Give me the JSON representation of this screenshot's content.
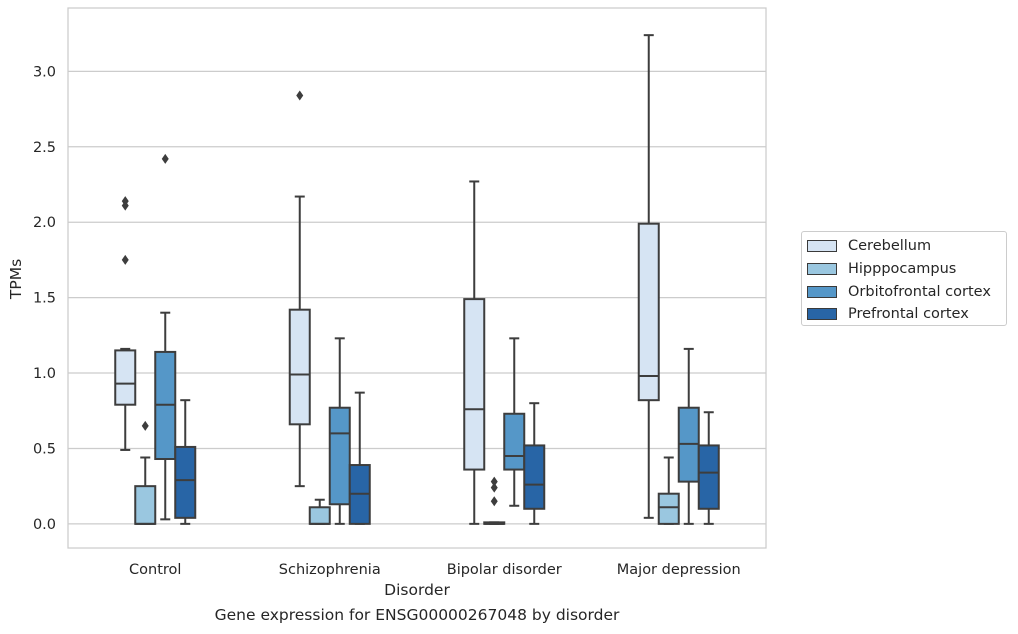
{
  "caption": "Gene expression for ENSG00000267048 by disorder",
  "chart_data": {
    "type": "box",
    "xlabel": "Disorder",
    "ylabel": "TPMs",
    "ylim": [
      -0.16,
      3.42
    ],
    "yticks": [
      0.0,
      0.5,
      1.0,
      1.5,
      2.0,
      2.5,
      3.0
    ],
    "ytick_labels": [
      "0.0",
      "0.5",
      "1.0",
      "1.5",
      "2.0",
      "2.5",
      "3.0"
    ],
    "grid": "horizontal",
    "legend_position": "right",
    "categories": [
      "Control",
      "Schizophrenia",
      "Bipolar disorder",
      "Major depression"
    ],
    "series": [
      {
        "name": "Cerebellum",
        "color": "#d6e4f3",
        "boxes": [
          {
            "whisker_low": 0.49,
            "q1": 0.79,
            "median": 0.93,
            "q3": 1.15,
            "whisker_high": 1.16,
            "outliers": [
              1.75,
              2.11,
              2.14
            ]
          },
          {
            "whisker_low": 0.25,
            "q1": 0.66,
            "median": 0.99,
            "q3": 1.42,
            "whisker_high": 2.17,
            "outliers": [
              2.84
            ]
          },
          {
            "whisker_low": 0.0,
            "q1": 0.36,
            "median": 0.76,
            "q3": 1.49,
            "whisker_high": 2.27,
            "outliers": []
          },
          {
            "whisker_low": 0.04,
            "q1": 0.82,
            "median": 0.98,
            "q3": 1.99,
            "whisker_high": 3.24,
            "outliers": []
          }
        ]
      },
      {
        "name": "Hipppocampus",
        "color": "#9ac7e0",
        "boxes": [
          {
            "whisker_low": 0.0,
            "q1": 0.0,
            "median": 0.0,
            "q3": 0.25,
            "whisker_high": 0.44,
            "outliers": [
              0.65
            ]
          },
          {
            "whisker_low": 0.0,
            "q1": 0.0,
            "median": 0.0,
            "q3": 0.11,
            "whisker_high": 0.16,
            "outliers": []
          },
          {
            "whisker_low": 0.0,
            "q1": 0.0,
            "median": 0.0,
            "q3": 0.01,
            "whisker_high": 0.01,
            "outliers": [
              0.15,
              0.24,
              0.28
            ]
          },
          {
            "whisker_low": 0.0,
            "q1": 0.0,
            "median": 0.11,
            "q3": 0.2,
            "whisker_high": 0.44,
            "outliers": []
          }
        ]
      },
      {
        "name": "Orbitofrontal cortex",
        "color": "#5597c8",
        "boxes": [
          {
            "whisker_low": 0.03,
            "q1": 0.43,
            "median": 0.79,
            "q3": 1.14,
            "whisker_high": 1.4,
            "outliers": [
              2.42
            ]
          },
          {
            "whisker_low": 0.0,
            "q1": 0.13,
            "median": 0.6,
            "q3": 0.77,
            "whisker_high": 1.23,
            "outliers": []
          },
          {
            "whisker_low": 0.12,
            "q1": 0.36,
            "median": 0.45,
            "q3": 0.73,
            "whisker_high": 1.23,
            "outliers": []
          },
          {
            "whisker_low": 0.0,
            "q1": 0.28,
            "median": 0.53,
            "q3": 0.77,
            "whisker_high": 1.16,
            "outliers": []
          }
        ]
      },
      {
        "name": "Prefrontal cortex",
        "color": "#2865a6",
        "boxes": [
          {
            "whisker_low": 0.0,
            "q1": 0.04,
            "median": 0.29,
            "q3": 0.51,
            "whisker_high": 0.82,
            "outliers": []
          },
          {
            "whisker_low": 0.0,
            "q1": 0.0,
            "median": 0.2,
            "q3": 0.39,
            "whisker_high": 0.87,
            "outliers": []
          },
          {
            "whisker_low": 0.0,
            "q1": 0.1,
            "median": 0.26,
            "q3": 0.52,
            "whisker_high": 0.8,
            "outliers": []
          },
          {
            "whisker_low": 0.0,
            "q1": 0.1,
            "median": 0.34,
            "q3": 0.52,
            "whisker_high": 0.74,
            "outliers": []
          }
        ]
      }
    ]
  }
}
